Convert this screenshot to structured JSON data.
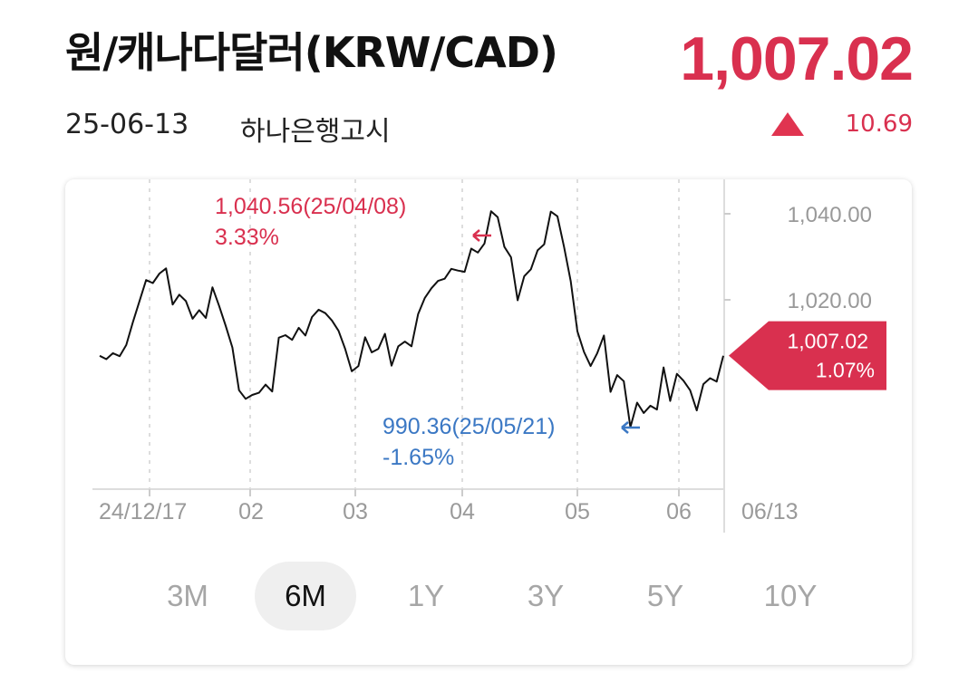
{
  "header": {
    "title": "원/캐나다달러(KRW/CAD)",
    "price": "1,007.02",
    "date": "25-06-13",
    "source": "하나은행고시",
    "change": "10.69",
    "change_icon": "triangle-up-icon"
  },
  "colors": {
    "accent_red": "#d9304f",
    "accent_blue": "#3b78c4",
    "line": "#111111"
  },
  "ranges": {
    "items": [
      "3M",
      "6M",
      "1Y",
      "3Y",
      "5Y",
      "10Y"
    ],
    "selected": "6M"
  },
  "chart_data": {
    "type": "line",
    "x_tick_labels": [
      "24/12/17",
      "02",
      "03",
      "04",
      "05",
      "06",
      "06/13"
    ],
    "y_tick_labels": [
      "1,040.00",
      "1,020.00"
    ],
    "ylim": [
      976,
      1048
    ],
    "grid": true,
    "series": [
      {
        "values": [
          1007.0,
          1006.2,
          1007.6,
          1006.9,
          1009.5,
          1014.8,
          1019.7,
          1024.6,
          1023.9,
          1026.1,
          1027.3,
          1018.9,
          1021.2,
          1019.7,
          1015.6,
          1017.6,
          1015.8,
          1022.9,
          1018.6,
          1013.9,
          1008.9,
          999.0,
          997.0,
          997.9,
          998.4,
          1000.3,
          998.7,
          1011.2,
          1011.8,
          1010.7,
          1013.5,
          1011.7,
          1016.0,
          1017.7,
          1016.9,
          1015.2,
          1012.8,
          1008.6,
          1003.4,
          1004.6,
          1011.3,
          1007.8,
          1008.6,
          1012.1,
          1004.7,
          1009.2,
          1010.3,
          1009.2,
          1016.7,
          1020.4,
          1022.7,
          1024.4,
          1024.9,
          1027.2,
          1026.8,
          1026.5,
          1031.9,
          1031.0,
          1033.1,
          1040.6,
          1039.2,
          1032.3,
          1029.9,
          1019.9,
          1025.5,
          1027.1,
          1031.5,
          1032.9,
          1040.5,
          1039.4,
          1032.3,
          1024.3,
          1012.7,
          1007.9,
          1004.6,
          1007.6,
          1011.7,
          998.6,
          1002.5,
          1001.1,
          990.4,
          996.1,
          993.7,
          995.4,
          994.5,
          1004.3,
          996.5,
          1002.8,
          1001.2,
          999.0,
          994.3,
          1000.4,
          1001.8,
          1001.0,
          1007.0
        ]
      }
    ],
    "annotations": [
      {
        "value_text": "1,040.56(25/04/08)",
        "pct_text": "3.33%",
        "kind": "high"
      },
      {
        "value_text": "990.36(25/05/21)",
        "pct_text": "-1.65%",
        "kind": "low"
      }
    ],
    "current": {
      "value_text": "1,007.02",
      "pct_text": "1.07%",
      "value": 1007.02
    }
  }
}
